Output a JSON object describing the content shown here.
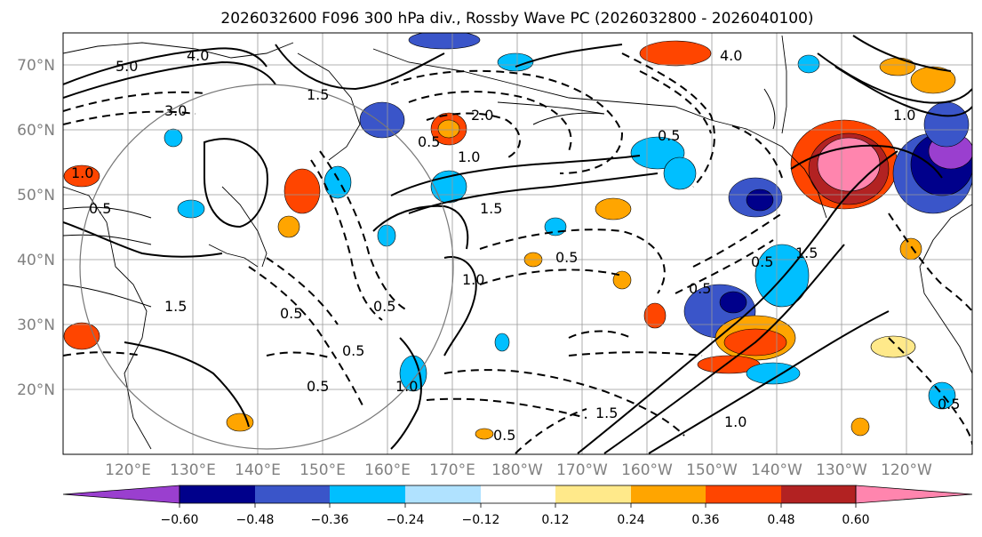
{
  "figure": {
    "title": "2026032600 F096 300 hPa div., Rossby Wave PC (2026032800 - 2026040100)"
  },
  "map": {
    "lat_ticks": [
      "70°N",
      "60°N",
      "50°N",
      "40°N",
      "30°N",
      "20°N"
    ],
    "lon_ticks": [
      "120°E",
      "130°E",
      "140°E",
      "150°E",
      "160°E",
      "170°E",
      "180°W",
      "170°W",
      "160°W",
      "150°W",
      "140°W",
      "130°W",
      "120°W"
    ],
    "lat_range": [
      10,
      75
    ],
    "lon_range_deg_east": [
      110,
      250
    ],
    "contour_labels": [
      "5.0",
      "3.0",
      "4.0",
      "1.5",
      "0.5",
      "1.0",
      "2.0",
      "0.5",
      "1.0",
      "1.5",
      "0.5",
      "0.5",
      "1.0",
      "1.5",
      "0.5",
      "0.5",
      "0.5",
      "1.0",
      "0.5",
      "1.5",
      "0.5",
      "0.5",
      "1.0",
      "1.5",
      "4.0",
      "1.0",
      "0.5",
      "0.5"
    ]
  },
  "colorbar": {
    "ticks": [
      "−0.60",
      "−0.48",
      "−0.36",
      "−0.24",
      "−0.12",
      "0.12",
      "0.24",
      "0.36",
      "0.48",
      "0.60"
    ],
    "colors": [
      "#9a3fcf",
      "#00008b",
      "#3a55c9",
      "#00bfff",
      "#b0e2ff",
      "#ffffff",
      "#ffe98a",
      "#ffa500",
      "#ff4500",
      "#b22222",
      "#ff85ae"
    ]
  }
}
